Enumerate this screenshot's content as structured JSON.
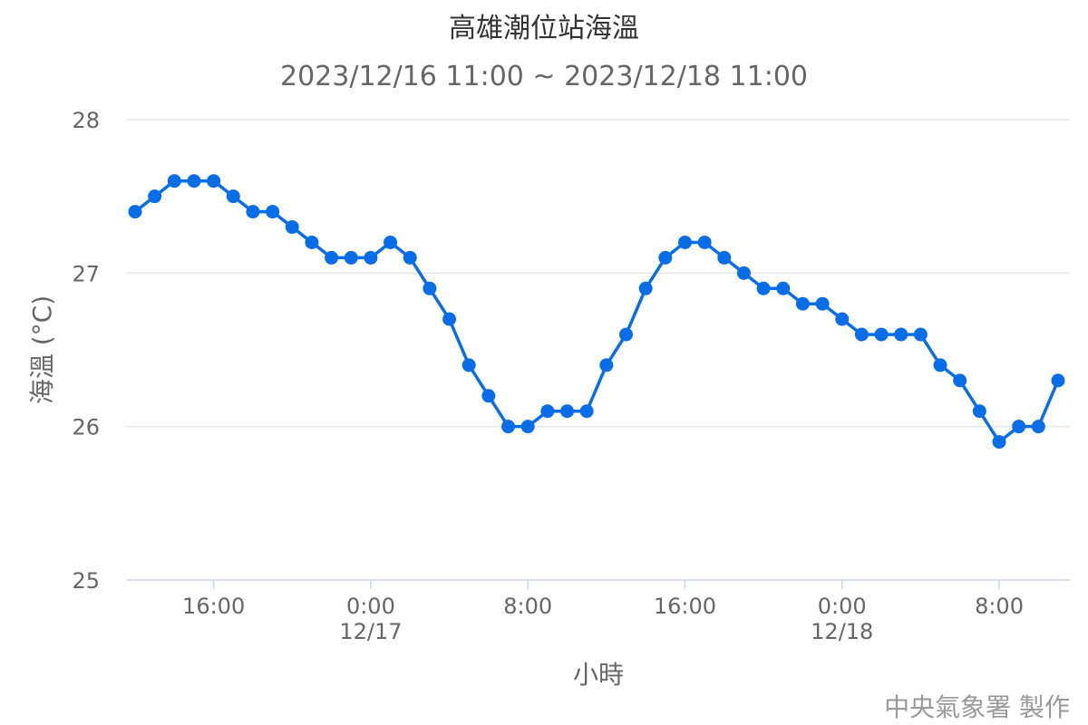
{
  "chart_data": {
    "type": "line",
    "title": "高雄潮位站海溫",
    "subtitle": "2023/12/16 11:00 ~ 2023/12/18 11:00",
    "xlabel": "小時",
    "ylabel": "海溫 (°C)",
    "ylim": [
      25,
      28
    ],
    "yticks": [
      "25",
      "26",
      "27",
      "28"
    ],
    "grid": true,
    "legend": "none",
    "credit": "中央氣象署 製作",
    "color": "#0a6de8",
    "xticks": [
      {
        "index": 4,
        "label": "16:00",
        "date": ""
      },
      {
        "index": 12,
        "label": "0:00",
        "date": "12/17"
      },
      {
        "index": 20,
        "label": "8:00",
        "date": ""
      },
      {
        "index": 28,
        "label": "16:00",
        "date": ""
      },
      {
        "index": 36,
        "label": "0:00",
        "date": "12/18"
      },
      {
        "index": 44,
        "label": "8:00",
        "date": ""
      }
    ],
    "x": [
      "12/16 12:00",
      "13:00",
      "14:00",
      "15:00",
      "16:00",
      "17:00",
      "18:00",
      "19:00",
      "20:00",
      "21:00",
      "22:00",
      "23:00",
      "12/17 0:00",
      "1:00",
      "2:00",
      "3:00",
      "4:00",
      "5:00",
      "6:00",
      "7:00",
      "8:00",
      "9:00",
      "10:00",
      "11:00",
      "12:00",
      "13:00",
      "14:00",
      "15:00",
      "16:00",
      "17:00",
      "18:00",
      "19:00",
      "20:00",
      "21:00",
      "22:00",
      "23:00",
      "12/18 0:00",
      "1:00",
      "2:00",
      "3:00",
      "4:00",
      "5:00",
      "6:00",
      "7:00",
      "8:00",
      "9:00",
      "10:00",
      "11:00"
    ],
    "values": [
      27.4,
      27.5,
      27.6,
      27.6,
      27.6,
      27.5,
      27.4,
      27.4,
      27.3,
      27.2,
      27.1,
      27.1,
      27.1,
      27.2,
      27.1,
      26.9,
      26.7,
      26.4,
      26.2,
      26.0,
      26.0,
      26.1,
      26.1,
      26.1,
      26.4,
      26.6,
      26.9,
      27.1,
      27.2,
      27.2,
      27.1,
      27.0,
      26.9,
      26.9,
      26.8,
      26.8,
      26.7,
      26.6,
      26.6,
      26.6,
      26.6,
      26.4,
      26.3,
      26.1,
      25.9,
      26.0,
      26.0,
      26.3
    ]
  }
}
